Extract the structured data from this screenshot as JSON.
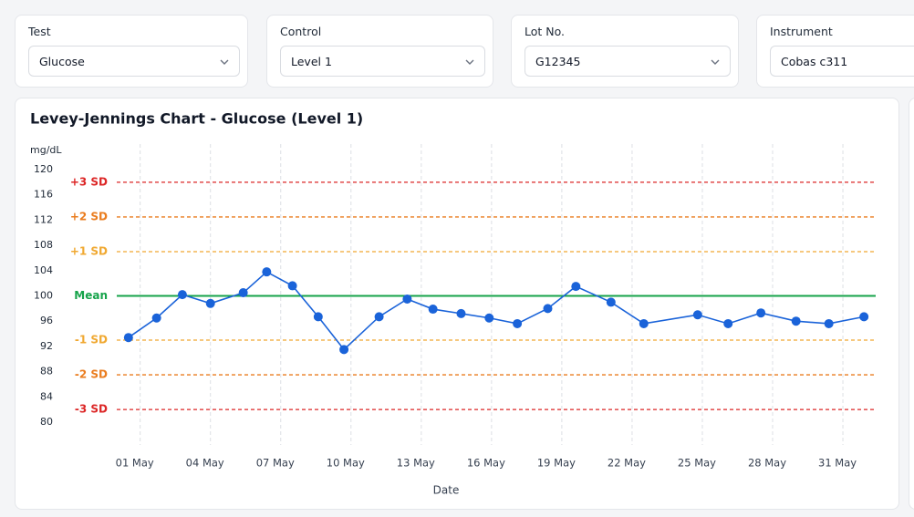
{
  "filters": [
    {
      "label": "Test",
      "value": "Glucose"
    },
    {
      "label": "Control",
      "value": "Level 1"
    },
    {
      "label": "Lot No.",
      "value": "G12345"
    },
    {
      "label": "Instrument",
      "value": "Cobas c311"
    }
  ],
  "chart_data": {
    "type": "line",
    "title": "Levey-Jennings Chart - Glucose (Level 1)",
    "y_unit": "mg/dL",
    "x_label": "Date",
    "x": [
      0.5,
      1.7,
      2.8,
      4.0,
      5.4,
      6.4,
      7.5,
      8.6,
      9.7,
      11.2,
      12.4,
      13.5,
      14.7,
      15.9,
      17.1,
      18.4,
      19.6,
      21.1,
      22.5,
      24.8,
      26.1,
      27.5,
      29.0,
      30.4,
      31.9
    ],
    "series": [
      {
        "name": "Glucose",
        "color": "#1a63d9",
        "values": [
          93.4,
          96.5,
          100.2,
          98.8,
          100.5,
          103.8,
          101.6,
          96.7,
          91.5,
          96.7,
          99.5,
          97.9,
          97.2,
          96.5,
          95.6,
          98.0,
          101.5,
          99.0,
          95.6,
          97.0,
          95.6,
          97.3,
          96.0,
          95.6,
          96.7
        ]
      }
    ],
    "control_limits": [
      {
        "label": "+3 SD",
        "value": 118,
        "color": "#dc2626",
        "style": "dashed"
      },
      {
        "label": "+2 SD",
        "value": 112.5,
        "color": "#ea7c1e",
        "style": "dashed"
      },
      {
        "label": "+1 SD",
        "value": 107,
        "color": "#f0a830",
        "style": "dashed"
      },
      {
        "label": "Mean",
        "value": 100,
        "color": "#16a34a",
        "style": "solid"
      },
      {
        "label": "-1 SD",
        "value": 93,
        "color": "#f0a830",
        "style": "dashed"
      },
      {
        "label": "-2 SD",
        "value": 87.5,
        "color": "#ea7c1e",
        "style": "dashed"
      },
      {
        "label": "-3 SD",
        "value": 82,
        "color": "#dc2626",
        "style": "dashed"
      }
    ],
    "xlim": [
      0,
      32.4
    ],
    "xticks": [
      {
        "value": 1,
        "label": "01 May"
      },
      {
        "value": 4,
        "label": "04 May"
      },
      {
        "value": 7,
        "label": "07 May"
      },
      {
        "value": 10,
        "label": "10 May"
      },
      {
        "value": 13,
        "label": "13 May"
      },
      {
        "value": 16,
        "label": "16 May"
      },
      {
        "value": 19,
        "label": "19 May"
      },
      {
        "value": 22,
        "label": "22 May"
      },
      {
        "value": 25,
        "label": "25 May"
      },
      {
        "value": 28,
        "label": "28 May"
      },
      {
        "value": 31,
        "label": "31 May"
      }
    ],
    "ylim": [
      80,
      120
    ],
    "yticks": [
      80,
      84,
      88,
      92,
      96,
      100,
      104,
      108,
      112,
      116,
      120
    ],
    "grid": true
  }
}
